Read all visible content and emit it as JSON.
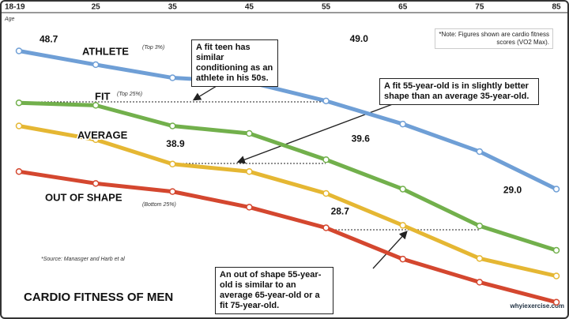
{
  "chart_data": {
    "type": "line",
    "title": "CARDIO FITNESS OF MEN",
    "x_label": "Age",
    "categories": [
      "18-19",
      "25",
      "35",
      "45",
      "55",
      "65",
      "75",
      "85"
    ],
    "ylim": [
      15,
      63
    ],
    "series": [
      {
        "name": "ATHLETE",
        "tier": "(Top 3%)",
        "color": "#6f9fd6",
        "values": [
          57.0,
          54.8,
          52.7,
          52.0,
          49.0,
          45.3,
          40.9,
          34.9
        ],
        "value_labels": [
          null,
          null,
          null,
          null,
          "49.0",
          null,
          null,
          null
        ]
      },
      {
        "name": "FIT",
        "tier": "(Top 25%)",
        "color": "#72b04c",
        "values": [
          48.7,
          48.3,
          45.0,
          43.8,
          39.6,
          34.9,
          29.0,
          25.1
        ],
        "value_labels": [
          "48.7",
          null,
          null,
          null,
          "39.6",
          null,
          "29.0",
          null
        ]
      },
      {
        "name": "AVERAGE",
        "color": "#e5b733",
        "values": [
          45.0,
          42.8,
          38.9,
          37.7,
          34.2,
          29.1,
          23.8,
          21.0
        ],
        "value_labels": [
          null,
          null,
          "38.9",
          null,
          null,
          null,
          null,
          null
        ]
      },
      {
        "name": "OUT OF SHAPE",
        "tier": "(Bottom 25%)",
        "color": "#d4472f",
        "values": [
          37.7,
          35.8,
          34.5,
          32.0,
          28.7,
          23.7,
          20.0,
          16.8
        ],
        "value_labels": [
          null,
          null,
          null,
          null,
          "28.7",
          null,
          null,
          null
        ]
      }
    ],
    "annotations": [
      "A fit teen has similar conditioning as an athlete in his 50s.",
      "A fit 55-year-old is in slightly better shape than an average 35-year-old.",
      "An out of shape 55-year-old is similar to an average 65-year-old or a fit 75-year-old."
    ],
    "note": "*Note: Figures shown are cardio fitness scores (VO2 Max).",
    "source": "*Source: Manasger and Harb et al",
    "website": "whyiexercise.com"
  }
}
